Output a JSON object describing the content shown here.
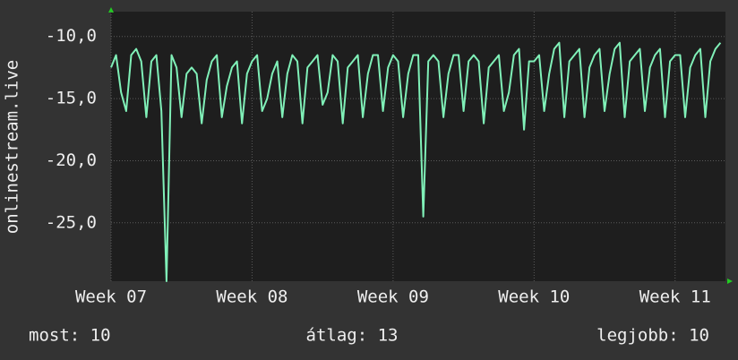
{
  "chart_data": {
    "type": "line",
    "y_label": "onlinestream.live",
    "x": [
      0,
      0.25,
      0.5,
      0.75,
      1,
      1.25,
      1.5,
      1.75,
      2,
      2.25,
      2.5,
      2.75,
      3,
      3.25,
      3.5,
      3.75,
      4,
      4.25,
      4.5,
      4.75,
      5,
      5.25,
      5.5,
      5.75,
      6,
      6.25,
      6.5,
      6.75,
      7,
      7.25,
      7.5,
      7.75,
      8,
      8.25,
      8.5,
      8.75,
      9,
      9.25,
      9.5,
      9.75,
      10,
      10.25,
      10.5,
      10.75,
      11,
      11.25,
      11.5,
      11.75,
      12,
      12.25,
      12.5,
      12.75,
      13,
      13.25,
      13.5,
      13.75,
      14,
      14.25,
      14.5,
      14.75,
      15,
      15.25,
      15.5,
      15.75,
      16,
      16.25,
      16.5,
      16.75,
      17,
      17.25,
      17.5,
      17.75,
      18,
      18.25,
      18.5,
      18.75,
      19,
      19.25,
      19.5,
      19.75,
      20,
      20.25,
      20.5,
      20.75,
      21,
      21.25,
      21.5,
      21.75,
      22,
      22.25,
      22.5,
      22.75,
      23,
      23.25,
      23.5,
      23.75,
      24,
      24.25,
      24.5,
      24.75,
      25,
      25.25,
      25.5,
      25.75,
      26,
      26.25,
      26.5,
      26.75,
      27,
      27.25,
      27.5,
      27.75,
      28,
      28.25,
      28.5,
      28.75,
      29,
      29.25,
      29.5,
      29.75,
      30,
      30.25
    ],
    "series": [
      {
        "color": "#80f0b8",
        "values": [
          -12.5,
          -11.5,
          -14.5,
          -16,
          -11.5,
          -11,
          -12,
          -16.5,
          -12,
          -11.5,
          -16,
          -29.7,
          -11.5,
          -12.5,
          -16.5,
          -13,
          -12.5,
          -13,
          -17,
          -13.5,
          -12,
          -11.5,
          -16.5,
          -14,
          -12.5,
          -12,
          -17,
          -13,
          -12,
          -11.5,
          -16,
          -15,
          -13,
          -12,
          -16.5,
          -13,
          -11.5,
          -12,
          -17,
          -12.5,
          -12,
          -11.5,
          -15.5,
          -14.5,
          -11.5,
          -12,
          -17,
          -12.5,
          -12,
          -11.5,
          -16.5,
          -13,
          -11.5,
          -11.5,
          -16,
          -12.5,
          -11.5,
          -12,
          -16.5,
          -13,
          -11.5,
          -11.5,
          -24.5,
          -12,
          -11.5,
          -12,
          -16.5,
          -13,
          -11.5,
          -11.5,
          -16,
          -12,
          -11.5,
          -12,
          -17,
          -12.5,
          -12,
          -11.5,
          -16,
          -14.5,
          -11.5,
          -11,
          -17.5,
          -12,
          -12,
          -11.5,
          -16,
          -13,
          -11,
          -10.5,
          -16.5,
          -12,
          -11.5,
          -11,
          -16.5,
          -12.5,
          -11.5,
          -11,
          -16,
          -13,
          -11,
          -10.5,
          -16.5,
          -12,
          -11.5,
          -11,
          -16,
          -12.5,
          -11.5,
          -11,
          -16.5,
          -12,
          -11.5,
          -11.5,
          -16.5,
          -12.5,
          -11.5,
          -11,
          -16.5,
          -12,
          -11,
          -10.5
        ]
      }
    ],
    "xlim": [
      0,
      30.5
    ],
    "xticks": [
      {
        "value": 0,
        "label": "Week 07"
      },
      {
        "value": 7,
        "label": "Week 08"
      },
      {
        "value": 14,
        "label": "Week 09"
      },
      {
        "value": 21,
        "label": "Week 10"
      },
      {
        "value": 28,
        "label": "Week 11"
      }
    ],
    "ylim": [
      -29.7,
      -8
    ],
    "yticks": [
      {
        "value": -10,
        "label": "-10,0"
      },
      {
        "value": -15,
        "label": "-15,0"
      },
      {
        "value": -20,
        "label": "-20,0"
      },
      {
        "value": -25,
        "label": "-25,0"
      }
    ],
    "grid": true,
    "footer": [
      "most: 10",
      "átlag: 13",
      "legjobb: 10"
    ]
  }
}
